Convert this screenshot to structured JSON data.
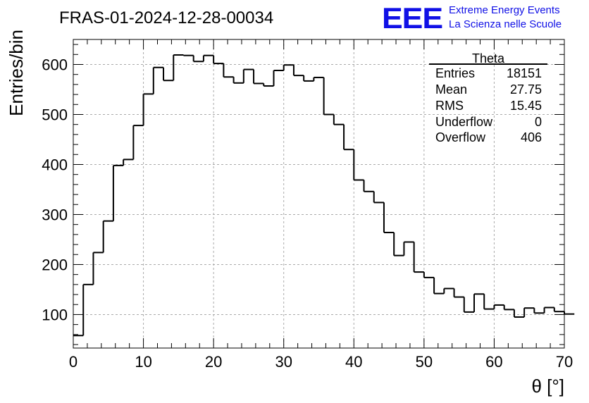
{
  "header": {
    "title": "FRAS-01-2024-12-28-00034",
    "logo": {
      "text": "EEE",
      "line1": "Extreme Energy Events",
      "line2": "La Scienza nelle Scuole",
      "color": "#1010e6"
    }
  },
  "stats_box": {
    "title": "Theta",
    "rows": [
      {
        "label": "Entries",
        "value": "18151"
      },
      {
        "label": "Mean",
        "value": "27.75"
      },
      {
        "label": "RMS",
        "value": "15.45"
      },
      {
        "label": "Underflow",
        "value": "0"
      },
      {
        "label": "Overflow",
        "value": "406"
      }
    ]
  },
  "chart_data": {
    "type": "bar",
    "histogram_style": "step",
    "title": "FRAS-01-2024-12-28-00034",
    "xlabel": "θ [°]",
    "ylabel": "Entries/bin",
    "xlim": [
      0,
      70
    ],
    "ylim": [
      33,
      650
    ],
    "x_ticks": [
      0,
      10,
      20,
      30,
      40,
      50,
      60,
      70
    ],
    "y_ticks": [
      100,
      200,
      300,
      400,
      500,
      600
    ],
    "grid": true,
    "bin_width": 1.4286,
    "bin_edges_start": 0,
    "values": [
      58,
      160,
      224,
      287,
      398,
      410,
      478,
      541,
      594,
      568,
      619,
      618,
      606,
      618,
      602,
      575,
      563,
      590,
      562,
      557,
      588,
      599,
      578,
      567,
      574,
      500,
      480,
      430,
      369,
      346,
      324,
      264,
      218,
      245,
      185,
      174,
      142,
      152,
      135,
      105,
      141,
      111,
      119,
      110,
      95,
      113,
      103,
      114,
      106,
      101
    ],
    "line_color": "#000000"
  }
}
